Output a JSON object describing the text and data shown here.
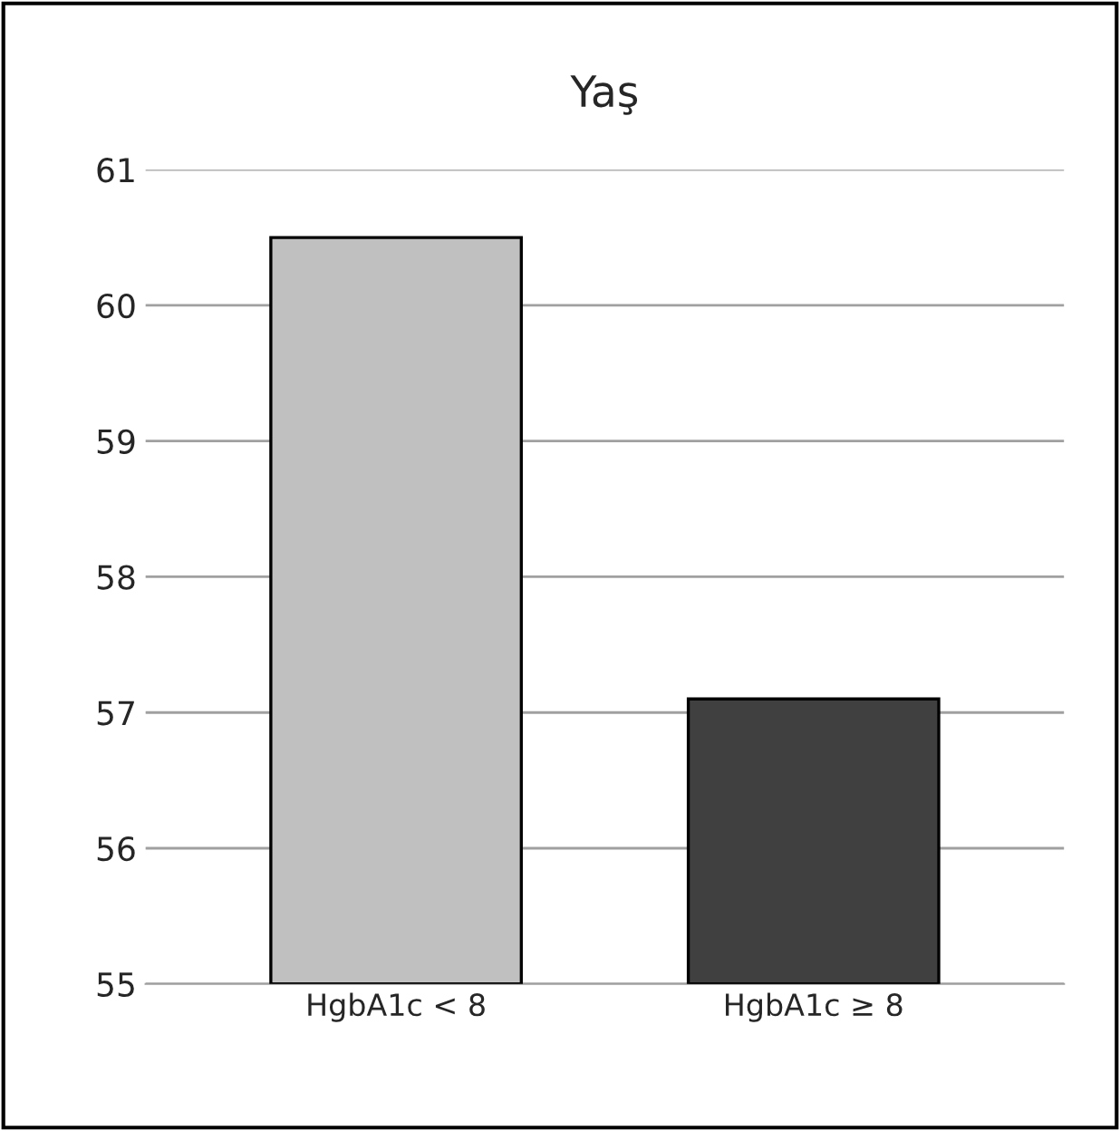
{
  "chart_data": {
    "type": "bar",
    "title": "Yaş",
    "categories": [
      "HgbA1c < 8",
      "HgbA1c ≥ 8"
    ],
    "values": [
      60.5,
      57.1
    ],
    "colors": [
      "#c0c0c0",
      "#404040"
    ],
    "ylim": [
      55,
      61
    ],
    "yticks": [
      55,
      56,
      57,
      58,
      59,
      60,
      61
    ],
    "grid": "y"
  }
}
